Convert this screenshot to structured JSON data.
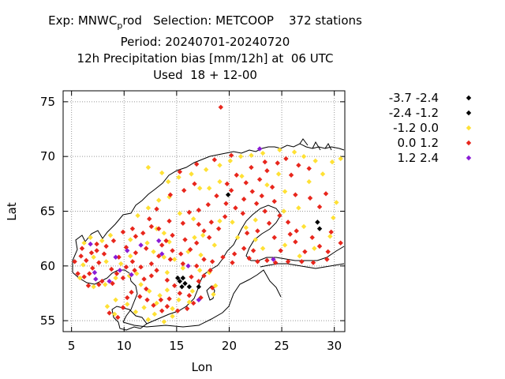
{
  "header": {
    "line1_prefix": "Exp: MNWC",
    "line1_sub": "p",
    "line1_suffix": "rod   Selection: METCOOP    372 stations",
    "line2": "Period: 20240701-20240720",
    "line3": "12h Precipitation bias [mm/12h] at  06 UTC",
    "line4": "Used  18 + 12-00"
  },
  "chart_data": {
    "type": "scatter",
    "xlabel": "Lon",
    "ylabel": "Lat",
    "xlim": [
      4.2,
      31.0
    ],
    "ylim": [
      54.0,
      76.0
    ],
    "xticks": [
      5,
      10,
      15,
      20,
      25,
      30
    ],
    "yticks": [
      55,
      60,
      65,
      70,
      75
    ],
    "grid": true,
    "legend_position": "right",
    "series": [
      {
        "name": "-3.7 -2.4",
        "color": "#000000",
        "points": [
          [
            19.9,
            66.5
          ],
          [
            15.3,
            58.6
          ],
          [
            15.8,
            58.4
          ],
          [
            15.6,
            58.9
          ],
          [
            17.1,
            58.1
          ],
          [
            28.4,
            64.0
          ],
          [
            28.6,
            63.4
          ]
        ]
      },
      {
        "name": "-2.4 -1.2",
        "color": "#000000",
        "points": [
          [
            15.1,
            58.9
          ],
          [
            15.5,
            58.1
          ],
          [
            16.2,
            58.1
          ]
        ]
      },
      {
        "name": "-1.2 0.0",
        "color": "#ffe135",
        "points": [
          [
            6.8,
            62.6
          ],
          [
            6.2,
            62.1
          ],
          [
            7.9,
            62.3
          ],
          [
            8.7,
            62.8
          ],
          [
            10.6,
            62.4
          ],
          [
            12.2,
            62.1
          ],
          [
            13.1,
            63.4
          ],
          [
            13.8,
            63.0
          ],
          [
            14.3,
            62.2
          ],
          [
            16.7,
            62.6
          ],
          [
            17.5,
            62.8
          ],
          [
            11.3,
            64.6
          ],
          [
            12.3,
            65.3
          ],
          [
            13.3,
            66.0
          ],
          [
            14.2,
            67.7
          ],
          [
            15.2,
            68.1
          ],
          [
            16.4,
            68.4
          ],
          [
            17.8,
            68.8
          ],
          [
            19.1,
            69.2
          ],
          [
            20.1,
            69.6
          ],
          [
            21.1,
            70.0
          ],
          [
            22.1,
            70.1
          ],
          [
            23.2,
            70.3
          ],
          [
            24.8,
            70.6
          ],
          [
            26.2,
            70.4
          ],
          [
            27.1,
            70.0
          ],
          [
            28.2,
            69.6
          ],
          [
            29.8,
            69.5
          ],
          [
            30.6,
            69.8
          ],
          [
            28.9,
            68.4
          ],
          [
            27.6,
            67.7
          ],
          [
            25.3,
            66.8
          ],
          [
            23.6,
            67.4
          ],
          [
            24.7,
            68.4
          ],
          [
            21.2,
            68.2
          ],
          [
            19.1,
            67.7
          ],
          [
            18.1,
            67.1
          ],
          [
            17.2,
            67.1
          ],
          [
            13.6,
            68.5
          ],
          [
            12.3,
            69.0
          ],
          [
            14.3,
            66.3
          ],
          [
            15.3,
            64.8
          ],
          [
            16.6,
            64.3
          ],
          [
            19.1,
            64.1
          ],
          [
            20.3,
            64.0
          ],
          [
            21.6,
            63.5
          ],
          [
            22.5,
            62.4
          ],
          [
            23.2,
            61.6
          ],
          [
            25.3,
            61.9
          ],
          [
            26.7,
            60.9
          ],
          [
            28.1,
            61.6
          ],
          [
            29.6,
            62.7
          ],
          [
            27.1,
            63.6
          ],
          [
            25.2,
            65.0
          ],
          [
            26.6,
            65.3
          ],
          [
            29.9,
            64.4
          ],
          [
            30.2,
            65.8
          ],
          [
            22.5,
            64.2
          ],
          [
            20.8,
            62.6
          ],
          [
            18.6,
            61.9
          ],
          [
            17.3,
            61.0
          ],
          [
            16.1,
            61.3
          ],
          [
            14.8,
            60.6
          ],
          [
            13.8,
            60.8
          ],
          [
            12.8,
            61.3
          ],
          [
            10.6,
            60.9
          ],
          [
            9.7,
            60.2
          ],
          [
            8.3,
            60.4
          ],
          [
            7.1,
            60.8
          ],
          [
            6.1,
            60.1
          ],
          [
            5.8,
            58.9
          ],
          [
            7.1,
            58.1
          ],
          [
            8.2,
            58.3
          ],
          [
            9.2,
            58.9
          ],
          [
            10.5,
            59.1
          ],
          [
            11.2,
            59.3
          ],
          [
            11.6,
            58.3
          ],
          [
            12.4,
            57.7
          ],
          [
            13.1,
            56.6
          ],
          [
            14.6,
            56.1
          ],
          [
            12.9,
            55.6
          ],
          [
            16.2,
            56.7
          ],
          [
            16.5,
            57.7
          ],
          [
            18.1,
            59.4
          ],
          [
            17.2,
            59.6
          ],
          [
            15.6,
            59.8
          ],
          [
            14.1,
            59.4
          ],
          [
            18.7,
            58.2
          ],
          [
            13.4,
            57.3
          ],
          [
            14.1,
            57.8
          ],
          [
            11.9,
            56.2
          ],
          [
            10.3,
            56.5
          ],
          [
            9.2,
            56.9
          ],
          [
            8.4,
            56.3
          ],
          [
            9.1,
            55.6
          ],
          [
            11.1,
            55.8
          ],
          [
            12.3,
            55.1
          ],
          [
            14.6,
            55.4
          ],
          [
            13.8,
            54.9
          ],
          [
            15.2,
            56.9
          ],
          [
            18.5,
            57.4
          ]
        ]
      },
      {
        "name": "0.0 1.2",
        "color": "#e8261c",
        "points": [
          [
            19.2,
            74.5
          ],
          [
            5.3,
            60.4
          ],
          [
            5.6,
            59.3
          ],
          [
            6.0,
            61.6
          ],
          [
            6.4,
            60.5
          ],
          [
            7.0,
            59.8
          ],
          [
            7.6,
            60.3
          ],
          [
            8.1,
            61.1
          ],
          [
            8.8,
            59.7
          ],
          [
            9.5,
            60.8
          ],
          [
            10.2,
            61.7
          ],
          [
            11.1,
            62.7
          ],
          [
            12.6,
            63.6
          ],
          [
            11.8,
            63.0
          ],
          [
            10.8,
            63.4
          ],
          [
            9.9,
            63.1
          ],
          [
            9.0,
            62.3
          ],
          [
            8.3,
            61.8
          ],
          [
            7.4,
            61.4
          ],
          [
            6.7,
            59.3
          ],
          [
            7.9,
            58.6
          ],
          [
            9.3,
            59.3
          ],
          [
            10.2,
            59.9
          ],
          [
            10.8,
            60.4
          ],
          [
            11.6,
            59.9
          ],
          [
            11.1,
            61.2
          ],
          [
            12.1,
            61.6
          ],
          [
            13.6,
            61.9
          ],
          [
            14.6,
            62.8
          ],
          [
            15.8,
            62.4
          ],
          [
            16.9,
            62.1
          ],
          [
            17.6,
            63.2
          ],
          [
            18.3,
            64.0
          ],
          [
            19.6,
            64.5
          ],
          [
            20.6,
            65.3
          ],
          [
            21.4,
            66.1
          ],
          [
            22.2,
            66.8
          ],
          [
            21.6,
            67.6
          ],
          [
            20.7,
            68.3
          ],
          [
            19.8,
            67.5
          ],
          [
            18.8,
            66.4
          ],
          [
            18.0,
            65.6
          ],
          [
            17.1,
            65.1
          ],
          [
            16.2,
            64.9
          ],
          [
            15.6,
            63.9
          ],
          [
            14.3,
            64.1
          ],
          [
            13.3,
            63.4
          ],
          [
            12.4,
            64.3
          ],
          [
            13.1,
            65.2
          ],
          [
            14.4,
            66.5
          ],
          [
            15.7,
            66.9
          ],
          [
            16.7,
            67.5
          ],
          [
            15.3,
            68.6
          ],
          [
            16.9,
            69.3
          ],
          [
            18.6,
            69.7
          ],
          [
            20.2,
            70.1
          ],
          [
            22.1,
            69.0
          ],
          [
            23.6,
            68.7
          ],
          [
            24.6,
            69.4
          ],
          [
            25.4,
            69.8
          ],
          [
            26.6,
            69.2
          ],
          [
            25.9,
            68.3
          ],
          [
            24.1,
            67.2
          ],
          [
            23.1,
            66.4
          ],
          [
            24.3,
            65.9
          ],
          [
            26.3,
            66.5
          ],
          [
            27.7,
            66.2
          ],
          [
            28.6,
            65.4
          ],
          [
            29.2,
            66.6
          ],
          [
            27.6,
            68.9
          ],
          [
            23.8,
            63.9
          ],
          [
            22.7,
            63.2
          ],
          [
            21.7,
            63.0
          ],
          [
            24.3,
            62.6
          ],
          [
            25.8,
            62.9
          ],
          [
            26.3,
            62.2
          ],
          [
            27.2,
            61.3
          ],
          [
            28.6,
            61.8
          ],
          [
            29.4,
            61.3
          ],
          [
            30.6,
            62.1
          ],
          [
            29.3,
            60.6
          ],
          [
            28.0,
            60.3
          ],
          [
            26.9,
            60.4
          ],
          [
            25.6,
            60.4
          ],
          [
            24.4,
            60.3
          ],
          [
            23.6,
            60.5
          ],
          [
            22.7,
            60.4
          ],
          [
            21.9,
            60.7
          ],
          [
            22.3,
            61.4
          ],
          [
            21.4,
            61.6
          ],
          [
            20.5,
            61.1
          ],
          [
            19.4,
            60.8
          ],
          [
            18.4,
            60.4
          ],
          [
            17.6,
            60.6
          ],
          [
            16.9,
            60.0
          ],
          [
            15.6,
            60.2
          ],
          [
            14.4,
            60.6
          ],
          [
            13.3,
            60.9
          ],
          [
            12.6,
            60.2
          ],
          [
            13.1,
            59.6
          ],
          [
            14.1,
            58.7
          ],
          [
            14.8,
            58.2
          ],
          [
            16.4,
            59.0
          ],
          [
            17.6,
            59.1
          ],
          [
            18.2,
            59.6
          ],
          [
            17.1,
            58.6
          ],
          [
            16.2,
            57.3
          ],
          [
            15.3,
            57.5
          ],
          [
            14.3,
            57.0
          ],
          [
            13.5,
            56.9
          ],
          [
            12.8,
            56.4
          ],
          [
            13.6,
            55.9
          ],
          [
            14.1,
            56.3
          ],
          [
            15.1,
            55.9
          ],
          [
            16.0,
            56.1
          ],
          [
            16.6,
            56.6
          ],
          [
            17.3,
            57.1
          ],
          [
            18.4,
            58.0
          ],
          [
            12.1,
            57.9
          ],
          [
            11.9,
            58.8
          ],
          [
            12.6,
            59.1
          ],
          [
            11.5,
            57.2
          ],
          [
            10.7,
            57.6
          ],
          [
            10.3,
            57.1
          ],
          [
            9.9,
            56.2
          ],
          [
            9.4,
            55.3
          ],
          [
            8.6,
            55.7
          ],
          [
            12.2,
            56.9
          ],
          [
            11.0,
            59.6
          ],
          [
            9.9,
            58.9
          ],
          [
            8.9,
            58.4
          ],
          [
            7.6,
            58.3
          ],
          [
            6.6,
            58.2
          ],
          [
            6.2,
            59.0
          ],
          [
            5.9,
            60.9
          ],
          [
            6.9,
            61.2
          ],
          [
            7.4,
            62.0
          ],
          [
            23.4,
            69.5
          ],
          [
            22.9,
            67.9
          ],
          [
            20.2,
            66.9
          ],
          [
            19.7,
            65.7
          ],
          [
            19.0,
            63.4
          ],
          [
            18.1,
            62.6
          ],
          [
            16.3,
            61.5
          ],
          [
            15.4,
            61.1
          ],
          [
            14.6,
            61.4
          ],
          [
            14.0,
            62.3
          ],
          [
            17.1,
            63.8
          ],
          [
            21.3,
            64.8
          ],
          [
            22.6,
            65.7
          ],
          [
            23.4,
            65.0
          ],
          [
            24.8,
            64.6
          ],
          [
            25.6,
            64.0
          ],
          [
            26.4,
            63.2
          ],
          [
            27.9,
            62.6
          ],
          [
            29.7,
            63.1
          ],
          [
            24.9,
            61.4
          ],
          [
            20.3,
            60.3
          ]
        ]
      },
      {
        "name": "1.2 2.4",
        "color": "#8a1bd6",
        "points": [
          [
            22.9,
            70.7
          ],
          [
            13.3,
            62.3
          ],
          [
            7.2,
            59.4
          ],
          [
            9.2,
            60.8
          ],
          [
            9.6,
            59.6
          ],
          [
            10.3,
            61.4
          ],
          [
            16.1,
            60.0
          ],
          [
            11.6,
            61.9
          ],
          [
            17.1,
            56.9
          ],
          [
            13.6,
            61.1
          ],
          [
            24.2,
            60.6
          ],
          [
            6.8,
            62.0
          ],
          [
            7.3,
            58.8
          ],
          [
            8.6,
            58.6
          ],
          [
            10.7,
            59.2
          ]
        ]
      }
    ]
  },
  "legend": {
    "entries": [
      {
        "label": "-3.7 -2.4",
        "color": "#000000"
      },
      {
        "label": "-2.4 -1.2",
        "color": "#000000"
      },
      {
        "label": "-1.2 0.0",
        "color": "#ffe135"
      },
      {
        "label": "0.0 1.2",
        "color": "#e8261c"
      },
      {
        "label": "1.2 2.4",
        "color": "#8a1bd6"
      }
    ]
  }
}
